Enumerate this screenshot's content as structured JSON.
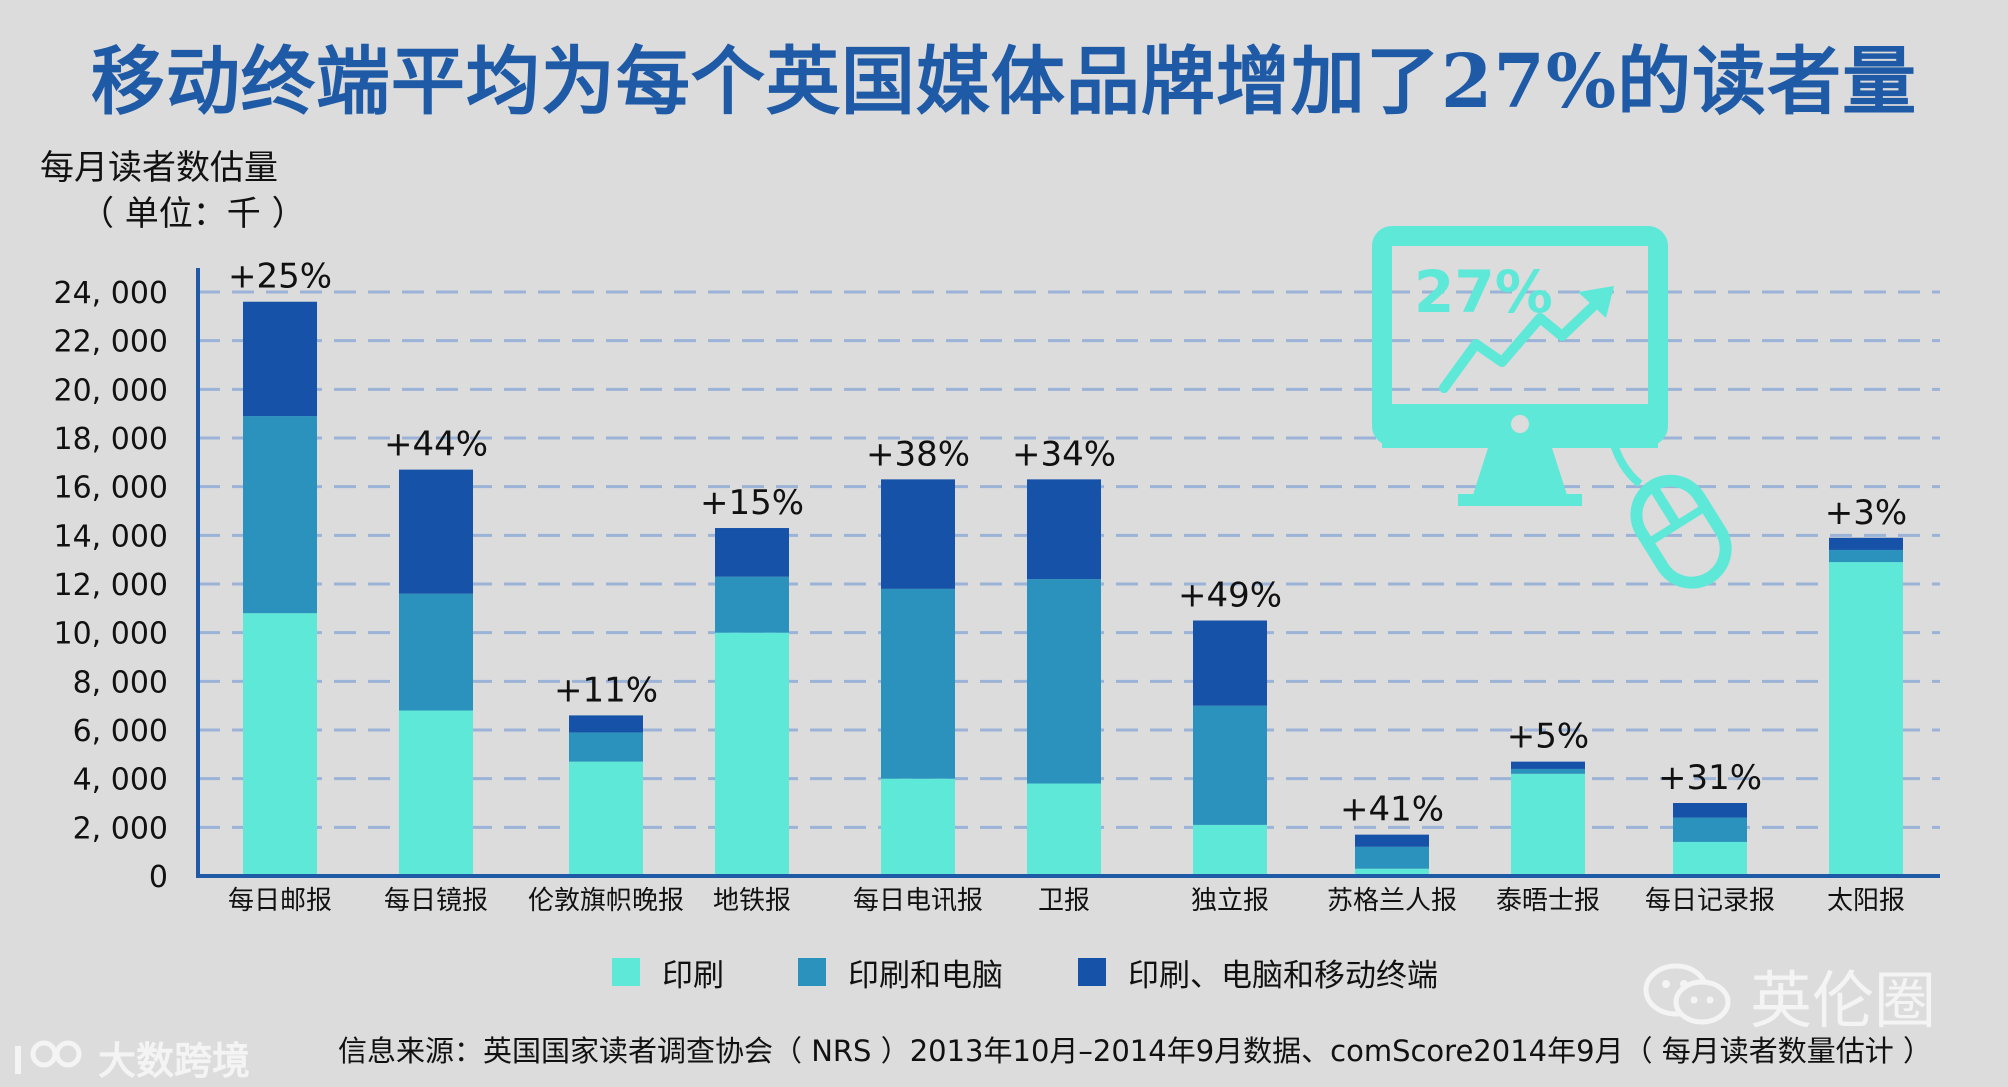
{
  "title": "移动终端平均为每个英国媒体品牌增加了27%的读者量",
  "ylabel_line1": "每月读者数估量",
  "ylabel_line2": "（ 单位：千 ）",
  "source": "信息来源：英国国家读者调查协会（ NRS ）2013年10月–2014年9月数据、comScore2014年9月（ 每月读者数量估计 ）",
  "illustration": {
    "text": "27%",
    "icon": "computer-monitor-growth-icon",
    "mouse_icon": "computer-mouse-icon",
    "color": "#5ee8d8"
  },
  "watermark_main": {
    "text": "英伦圈",
    "icon": "wechat-icon"
  },
  "watermark_corner": {
    "text": "大数跨境",
    "icon": "logo-mark-icon"
  },
  "chart_data": {
    "type": "bar",
    "stacked": true,
    "categories": [
      "每日邮报",
      "每日镜报",
      "伦敦旗帜晚报",
      "地铁报",
      "每日电讯报",
      "卫报",
      "独立报",
      "苏格兰人报",
      "泰晤士报",
      "每日记录报",
      "太阳报"
    ],
    "series": [
      {
        "name": "印刷",
        "color": "#5ee8d8",
        "values": [
          10800,
          6800,
          4700,
          10000,
          4000,
          3800,
          2100,
          300,
          4200,
          1400,
          12900
        ]
      },
      {
        "name": "印刷和电脑",
        "color": "#2a92bc",
        "values": [
          8100,
          4800,
          1200,
          2300,
          7800,
          8400,
          4900,
          900,
          200,
          1000,
          500
        ]
      },
      {
        "name": "印刷、电脑和移动终端",
        "color": "#1552a8",
        "values": [
          4700,
          5100,
          700,
          2000,
          4500,
          4100,
          3500,
          500,
          300,
          600,
          500
        ]
      }
    ],
    "growth_labels": [
      "+25%",
      "+44%",
      "+11%",
      "+15%",
      "+38%",
      "+34%",
      "+49%",
      "+41%",
      "+5%",
      "+31%",
      "+3%"
    ],
    "ylim": [
      0,
      24000
    ],
    "yticks": [
      0,
      2000,
      4000,
      6000,
      8000,
      10000,
      12000,
      14000,
      16000,
      18000,
      20000,
      22000,
      24000
    ],
    "ytick_labels": [
      "0",
      "2, 000",
      "4, 000",
      "6, 000",
      "8, 000",
      "10, 000",
      "12, 000",
      "14, 000",
      "16, 000",
      "18, 000",
      "20, 000",
      "22, 000",
      "24, 000"
    ],
    "grid": true,
    "legend": "bottom"
  }
}
